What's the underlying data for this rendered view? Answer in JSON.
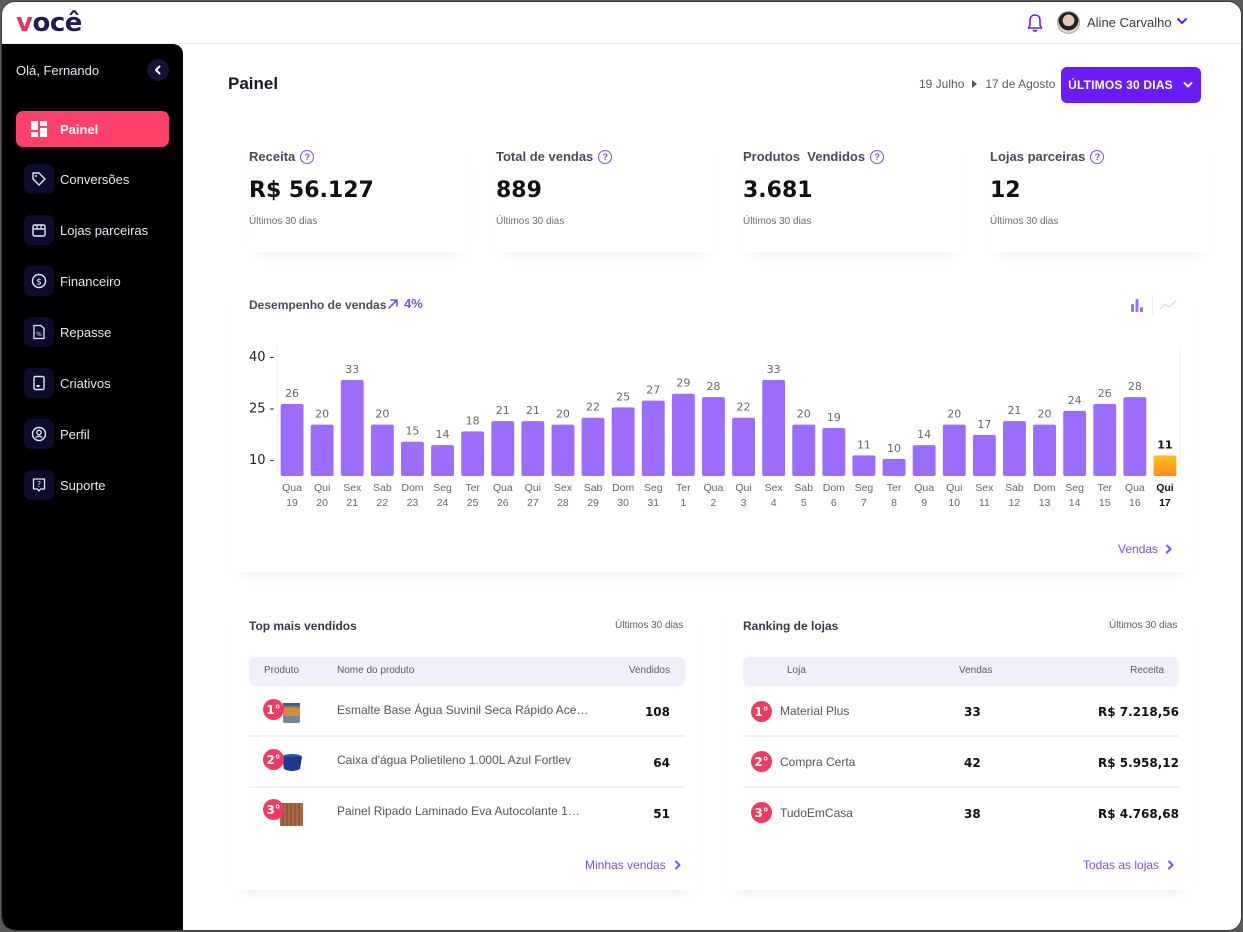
{
  "app": {
    "logo": "você"
  },
  "header": {
    "user_name": "Aline Carvalho"
  },
  "sidebar": {
    "greeting": "Olá, Fernando",
    "items": [
      {
        "label": "Painel",
        "icon": "dashboard-icon",
        "active": true
      },
      {
        "label": "Conversões",
        "icon": "tag-icon",
        "active": false
      },
      {
        "label": "Lojas parceiras",
        "icon": "store-icon",
        "active": false
      },
      {
        "label": "Financeiro",
        "icon": "dollar-circle-icon",
        "active": false
      },
      {
        "label": "Repasse",
        "icon": "percent-document-icon",
        "active": false
      },
      {
        "label": "Criativos",
        "icon": "image-frame-icon",
        "active": false
      },
      {
        "label": "Perfil",
        "icon": "user-circle-icon",
        "active": false
      },
      {
        "label": "Suporte",
        "icon": "help-chat-icon",
        "active": false
      }
    ]
  },
  "page": {
    "title": "Painel",
    "date_from": "19 Julho",
    "date_to": "17 de Agosto",
    "period_button": "ÚLTIMOS 30 DIAS"
  },
  "kpis": [
    {
      "label": "Receita",
      "value": "R$ 56.127",
      "sub": "Últimos 30 dias"
    },
    {
      "label": "Total de vendas",
      "value": "889",
      "sub": "Últimos 30 dias"
    },
    {
      "label": "Produtos  Vendidos",
      "value": "3.681",
      "sub": "Últimos 30 dias"
    },
    {
      "label": "Lojas parceiras",
      "value": "12",
      "sub": "Últimos 30 dias"
    }
  ],
  "performance": {
    "title": "Desempenho de vendas",
    "trend": "4%",
    "link": "Vendas"
  },
  "chart_data": {
    "type": "bar",
    "title": "Desempenho de vendas",
    "xlabel": "",
    "ylabel": "",
    "ylim": [
      5,
      40
    ],
    "yticks": [
      10,
      25,
      40
    ],
    "grid": false,
    "categories": [
      {
        "day": "Qua",
        "date": "19"
      },
      {
        "day": "Qui",
        "date": "20"
      },
      {
        "day": "Sex",
        "date": "21"
      },
      {
        "day": "Sab",
        "date": "22"
      },
      {
        "day": "Dom",
        "date": "23"
      },
      {
        "day": "Seg",
        "date": "24"
      },
      {
        "day": "Ter",
        "date": "25"
      },
      {
        "day": "Qua",
        "date": "26"
      },
      {
        "day": "Qui",
        "date": "27"
      },
      {
        "day": "Sex",
        "date": "28"
      },
      {
        "day": "Sab",
        "date": "29"
      },
      {
        "day": "Dom",
        "date": "30"
      },
      {
        "day": "Seg",
        "date": "31"
      },
      {
        "day": "Ter",
        "date": "1"
      },
      {
        "day": "Qua",
        "date": "2"
      },
      {
        "day": "Qui",
        "date": "3"
      },
      {
        "day": "Sex",
        "date": "4"
      },
      {
        "day": "Sab",
        "date": "5"
      },
      {
        "day": "Dom",
        "date": "6"
      },
      {
        "day": "Seg",
        "date": "7"
      },
      {
        "day": "Ter",
        "date": "8"
      },
      {
        "day": "Qua",
        "date": "9"
      },
      {
        "day": "Qui",
        "date": "10"
      },
      {
        "day": "Sex",
        "date": "11"
      },
      {
        "day": "Sab",
        "date": "12"
      },
      {
        "day": "Dom",
        "date": "13"
      },
      {
        "day": "Seg",
        "date": "14"
      },
      {
        "day": "Ter",
        "date": "15"
      },
      {
        "day": "Qua",
        "date": "16"
      },
      {
        "day": "Qui",
        "date": "17"
      }
    ],
    "values": [
      26,
      20,
      33,
      20,
      15,
      14,
      18,
      21,
      21,
      20,
      22,
      25,
      27,
      29,
      28,
      22,
      33,
      20,
      19,
      11,
      10,
      14,
      20,
      17,
      21,
      20,
      24,
      26,
      28,
      11
    ],
    "highlight_index": 29,
    "colors": {
      "bar": "#9b6dfa",
      "highlight_top": "#ffc21a",
      "highlight_bottom": "#ff8a1e"
    }
  },
  "top_products": {
    "title": "Top mais vendidos",
    "period": "Últimos 30 dias",
    "columns": [
      "Produto",
      "Nome do produto",
      "Vendidos"
    ],
    "rows": [
      {
        "rank": "1°",
        "name": "Esmalte Base Água Suvinil Seca Rápido Ace…",
        "sold": "108",
        "thumb": "paint-can"
      },
      {
        "rank": "2°",
        "name": "Caixa d'água Polietileno 1.000L Azul Fortlev",
        "sold": "64",
        "thumb": "water-tank"
      },
      {
        "rank": "3°",
        "name": "Painel Ripado Laminado Eva Autocolante 1…",
        "sold": "51",
        "thumb": "wood-panel"
      }
    ],
    "link": "Minhas vendas"
  },
  "store_ranking": {
    "title": "Ranking de lojas",
    "period": "Últimos 30 dias",
    "columns": [
      "Loja",
      "Vendas",
      "Receita"
    ],
    "rows": [
      {
        "rank": "1°",
        "name": "Material Plus",
        "sales": "33",
        "revenue": "R$ 7.218,56"
      },
      {
        "rank": "2°",
        "name": "Compra Certa",
        "sales": "42",
        "revenue": "R$ 5.958,12"
      },
      {
        "rank": "3°",
        "name": "TudoEmCasa",
        "sales": "38",
        "revenue": "R$ 4.768,68"
      }
    ],
    "link": "Todas as lojas"
  },
  "colors": {
    "accent": "#6a1cf7",
    "accent_light": "#7d4df0",
    "active_nav": "#fe3f68",
    "rank_badge": "#ef3a62"
  }
}
